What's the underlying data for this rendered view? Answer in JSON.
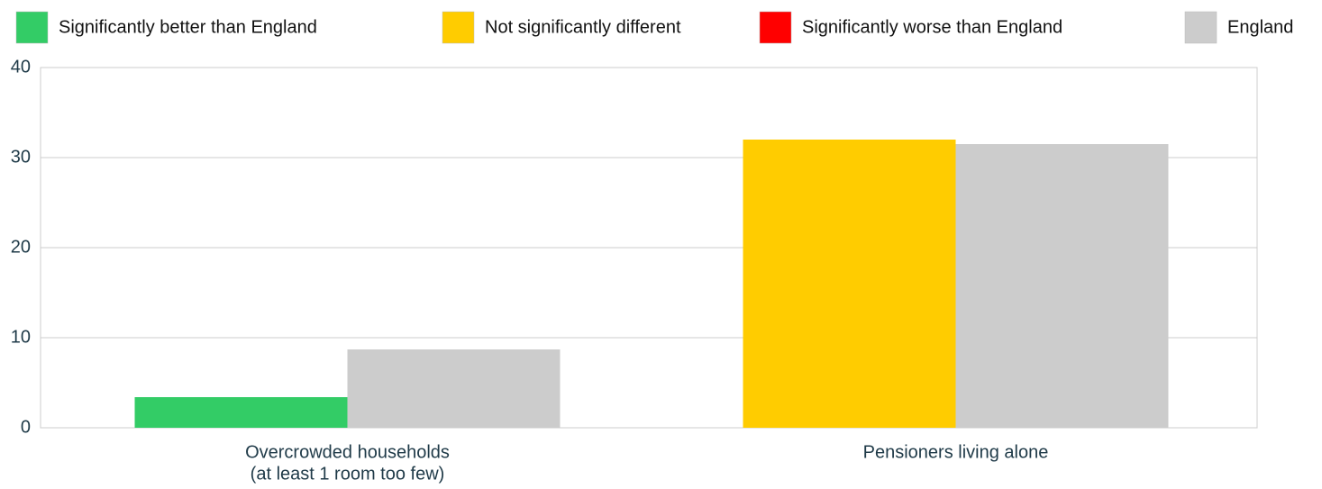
{
  "chart_data": {
    "type": "bar",
    "legend": [
      {
        "label": "Significantly better than England",
        "color": "#33cc66"
      },
      {
        "label": "Not significantly different",
        "color": "#ffcc00"
      },
      {
        "label": "Significantly worse than England",
        "color": "#ff0000"
      },
      {
        "label": "England",
        "color": "#cccccc"
      }
    ],
    "categories": [
      [
        "Overcrowded households",
        "(at least 1 room too few)"
      ],
      [
        "Pensioners living alone"
      ]
    ],
    "series": [
      {
        "values": [
          3.4,
          32
        ],
        "colors": [
          "#33cc66",
          "#ffcc00"
        ]
      },
      {
        "values": [
          8.7,
          31.5
        ],
        "color": "#cccccc"
      }
    ],
    "ylim": [
      0,
      40
    ],
    "yticks": [
      0,
      10,
      20,
      30,
      40
    ],
    "grid": true
  }
}
